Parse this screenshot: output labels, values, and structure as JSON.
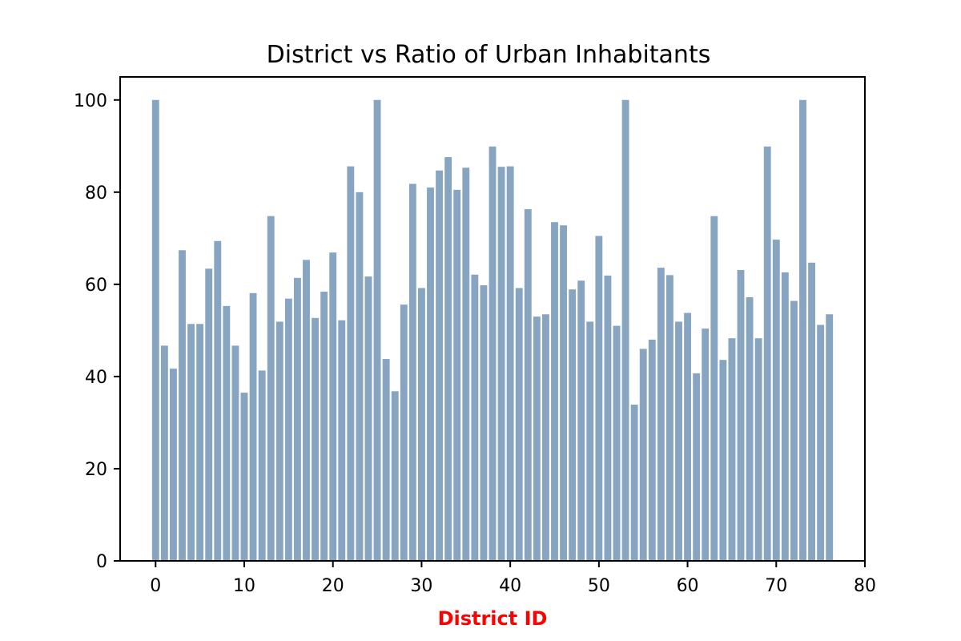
{
  "chart_data": {
    "type": "bar",
    "title": "District vs Ratio of Urban Inhabitants",
    "xlabel": "District ID",
    "ylabel": "",
    "xlim": [
      -4,
      80
    ],
    "ylim": [
      0,
      105
    ],
    "x_ticks": [
      0,
      10,
      20,
      30,
      40,
      50,
      60,
      70,
      80
    ],
    "y_ticks": [
      0,
      20,
      40,
      60,
      80,
      100
    ],
    "grid": false,
    "bar_width": 0.8,
    "colors": {
      "bar": "#87a4c1",
      "xlabel": "#ff0000",
      "axis": "#000000"
    },
    "x": [
      0,
      1,
      2,
      3,
      4,
      5,
      6,
      7,
      8,
      9,
      10,
      11,
      12,
      13,
      14,
      15,
      16,
      17,
      18,
      19,
      20,
      21,
      22,
      23,
      24,
      25,
      26,
      27,
      28,
      29,
      30,
      31,
      32,
      33,
      34,
      35,
      36,
      37,
      38,
      39,
      40,
      41,
      42,
      43,
      44,
      45,
      46,
      47,
      48,
      49,
      50,
      51,
      52,
      53,
      54,
      55,
      56,
      57,
      58,
      59,
      60,
      61,
      62,
      63,
      64,
      65,
      66,
      67,
      68,
      69,
      70,
      71,
      72,
      73,
      74,
      75,
      76
    ],
    "values": [
      100,
      46.7,
      41.7,
      67.4,
      51.4,
      51.4,
      63.4,
      69.4,
      55.3,
      46.7,
      36.5,
      58.1,
      41.3,
      74.8,
      51.9,
      56.9,
      61.4,
      65.3,
      52.7,
      58.4,
      66.9,
      52.2,
      85.6,
      80.0,
      61.7,
      100,
      43.8,
      36.8,
      55.6,
      81.8,
      59.2,
      81.0,
      84.7,
      87.6,
      80.5,
      85.3,
      62.1,
      59.8,
      89.9,
      85.5,
      85.6,
      59.2,
      76.3,
      53.0,
      53.5,
      73.5,
      72.8,
      58.9,
      60.8,
      51.9,
      70.5,
      61.9,
      51.0,
      100,
      33.9,
      46.0,
      48.0,
      63.6,
      62.0,
      51.9,
      53.8,
      40.7,
      50.4,
      74.8,
      43.6,
      48.3,
      63.1,
      57.2,
      48.3,
      89.9,
      69.7,
      62.6,
      56.4,
      100,
      64.7,
      51.2,
      53.5
    ]
  }
}
